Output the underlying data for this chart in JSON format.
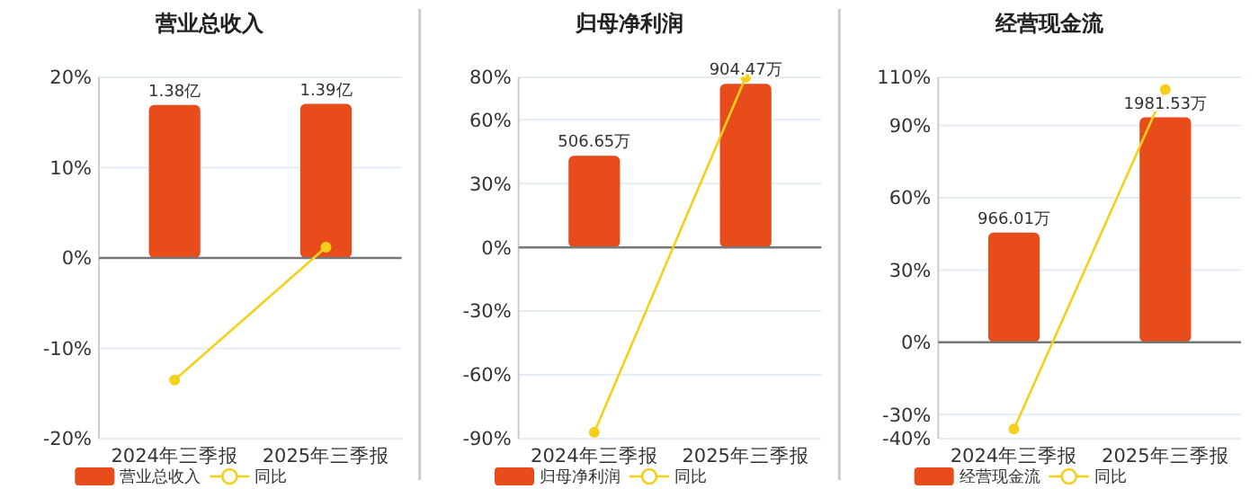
{
  "chart_data": [
    {
      "type": "bar",
      "title": "营业总收入",
      "categories": [
        "2024年三季报",
        "2025年三季报"
      ],
      "series": [
        {
          "name": "营业总收入",
          "axis": "y2",
          "color": "#e84c1b",
          "values": [
            1.38,
            1.39
          ],
          "value_labels": [
            "1.38亿",
            "1.39亿"
          ]
        },
        {
          "name": "同比",
          "type": "line",
          "color": "#f5d01a",
          "values": [
            -13.5,
            1.2
          ]
        }
      ],
      "ylim": [
        -20,
        20
      ],
      "yticks": [
        {
          "value": -20,
          "label": "-20%"
        },
        {
          "value": -10,
          "label": "-10%"
        },
        {
          "value": 0,
          "label": "0%"
        },
        {
          "value": 10,
          "label": "10%"
        },
        {
          "value": 20,
          "label": "20%"
        }
      ],
      "y2lim": [
        -1.63,
        1.63
      ],
      "grid": "y",
      "legend": "bottom",
      "marker": "circle"
    },
    {
      "type": "bar",
      "title": "归母净利润",
      "categories": [
        "2024年三季报",
        "2025年三季报"
      ],
      "series": [
        {
          "name": "归母净利润",
          "axis": "y2",
          "color": "#e84c1b",
          "values": [
            506.65,
            904.47
          ],
          "value_labels": [
            "506.65万",
            "904.47万"
          ]
        },
        {
          "name": "同比",
          "type": "line",
          "color": "#f5d01a",
          "values": [
            -87,
            80
          ]
        }
      ],
      "ylim": [
        -90,
        80
      ],
      "yticks": [
        {
          "value": -90,
          "label": "-90%"
        },
        {
          "value": -60,
          "label": "-60%"
        },
        {
          "value": -30,
          "label": "-30%"
        },
        {
          "value": 0,
          "label": "0%"
        },
        {
          "value": 30,
          "label": "30%"
        },
        {
          "value": 60,
          "label": "60%"
        },
        {
          "value": 80,
          "label": "80%"
        }
      ],
      "y2lim": [
        -1058,
        941
      ],
      "grid": "y",
      "legend": "bottom",
      "marker": "circle"
    },
    {
      "type": "bar",
      "title": "经营现金流",
      "categories": [
        "2024年三季报",
        "2025年三季报"
      ],
      "series": [
        {
          "name": "经营现金流",
          "axis": "y2",
          "color": "#e84c1b",
          "values": [
            966.01,
            1981.53
          ],
          "value_labels": [
            "966.01万",
            "1981.53万"
          ]
        },
        {
          "name": "同比",
          "type": "line",
          "color": "#f5d01a",
          "values": [
            -36,
            105
          ]
        }
      ],
      "ylim": [
        -40,
        110
      ],
      "yticks": [
        {
          "value": -40,
          "label": "-40%"
        },
        {
          "value": -30,
          "label": "-30%"
        },
        {
          "value": 0,
          "label": "0%"
        },
        {
          "value": 30,
          "label": "30%"
        },
        {
          "value": 60,
          "label": "60%"
        },
        {
          "value": 90,
          "label": "90%"
        },
        {
          "value": 110,
          "label": "110%"
        }
      ],
      "y2lim": [
        -849,
        2334
      ],
      "grid": "y",
      "legend": "bottom",
      "marker": "circle"
    }
  ]
}
